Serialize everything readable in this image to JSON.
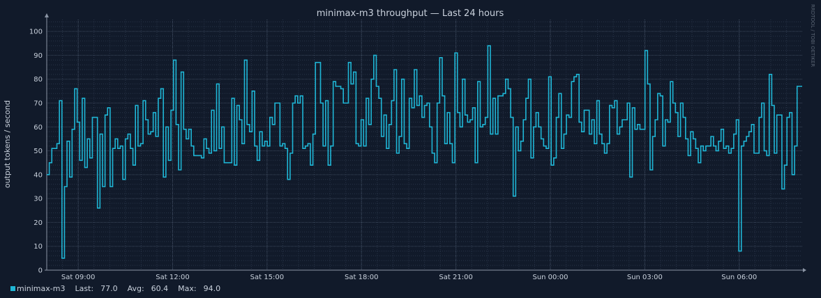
{
  "chart_data": {
    "type": "line",
    "title": "minimax-m3 throughput — Last 24 hours",
    "ylabel": "output tokens / second",
    "xlabel": "",
    "watermark": "RRDTOOL / TOBI OETIKER",
    "ylim": [
      0,
      105
    ],
    "yticks": [
      0,
      10,
      20,
      30,
      40,
      50,
      60,
      70,
      80,
      90,
      100
    ],
    "x_unit": "hours since 08:00 Sat",
    "xlim": [
      0,
      24
    ],
    "xticks": [
      {
        "value": 1,
        "label": "Sat 09:00"
      },
      {
        "value": 4,
        "label": "Sat 12:00"
      },
      {
        "value": 7,
        "label": "Sat 15:00"
      },
      {
        "value": 10,
        "label": "Sat 18:00"
      },
      {
        "value": 13,
        "label": "Sat 21:00"
      },
      {
        "value": 16,
        "label": "Sun 00:00"
      },
      {
        "value": 19,
        "label": "Sun 03:00"
      },
      {
        "value": 22,
        "label": "Sun 06:00"
      }
    ],
    "grid": true,
    "series": [
      {
        "name": "minimax-m3",
        "color": "#1fb6d6",
        "values": [
          40,
          45,
          51,
          51,
          53,
          71,
          5,
          35,
          54,
          39,
          59,
          76,
          62,
          46,
          72,
          43,
          55,
          47,
          64,
          64,
          26,
          57,
          35,
          65,
          68,
          35,
          51,
          55,
          51,
          52,
          38,
          55,
          57,
          51,
          44,
          69,
          52,
          53,
          71,
          63,
          57,
          58,
          66,
          56,
          72,
          76,
          39,
          60,
          46,
          67,
          88,
          61,
          42,
          83,
          59,
          55,
          59,
          52,
          48,
          48,
          48,
          47,
          55,
          51,
          49,
          67,
          50,
          78,
          51,
          60,
          45,
          45,
          45,
          72,
          44,
          69,
          63,
          53,
          88,
          61,
          58,
          75,
          52,
          46,
          58,
          52,
          54,
          52,
          64,
          61,
          70,
          70,
          52,
          53,
          51,
          38,
          49,
          70,
          73,
          70,
          73,
          51,
          52,
          53,
          44,
          57,
          87,
          87,
          70,
          52,
          71,
          44,
          52,
          79,
          77,
          77,
          76,
          70,
          70,
          87,
          78,
          83,
          53,
          52,
          63,
          52,
          72,
          61,
          80,
          90,
          77,
          72,
          56,
          65,
          51,
          61,
          71,
          84,
          49,
          56,
          80,
          53,
          51,
          72,
          68,
          84,
          69,
          73,
          64,
          69,
          70,
          60,
          49,
          45,
          70,
          89,
          73,
          53,
          66,
          53,
          45,
          91,
          66,
          60,
          80,
          65,
          62,
          63,
          68,
          45,
          79,
          60,
          61,
          64,
          94,
          57,
          72,
          57,
          73,
          73,
          74,
          80,
          76,
          64,
          31,
          60,
          50,
          54,
          63,
          72,
          80,
          47,
          60,
          66,
          60,
          55,
          52,
          51,
          81,
          44,
          47,
          64,
          74,
          51,
          57,
          65,
          64,
          79,
          81,
          82,
          62,
          58,
          67,
          67,
          57,
          63,
          53,
          71,
          57,
          53,
          49,
          53,
          69,
          68,
          71,
          57,
          60,
          63,
          63,
          70,
          39,
          68,
          59,
          61,
          59,
          59,
          92,
          78,
          42,
          56,
          63,
          74,
          73,
          52,
          63,
          62,
          79,
          70,
          66,
          56,
          70,
          64,
          55,
          48,
          58,
          55,
          51,
          45,
          52,
          50,
          52,
          52,
          56,
          52,
          50,
          54,
          59,
          51,
          52,
          49,
          51,
          57,
          63,
          8,
          52,
          54,
          56,
          58,
          61,
          49,
          49,
          64,
          70,
          50,
          48,
          82,
          69,
          49,
          65,
          65,
          34,
          44,
          64,
          66,
          40,
          52,
          77,
          77
        ]
      }
    ],
    "legend": {
      "last_label": "Last:",
      "last_value": "77.0",
      "avg_label": "Avg:",
      "avg_value": "60.4",
      "max_label": "Max:",
      "max_value": "94.0"
    }
  }
}
